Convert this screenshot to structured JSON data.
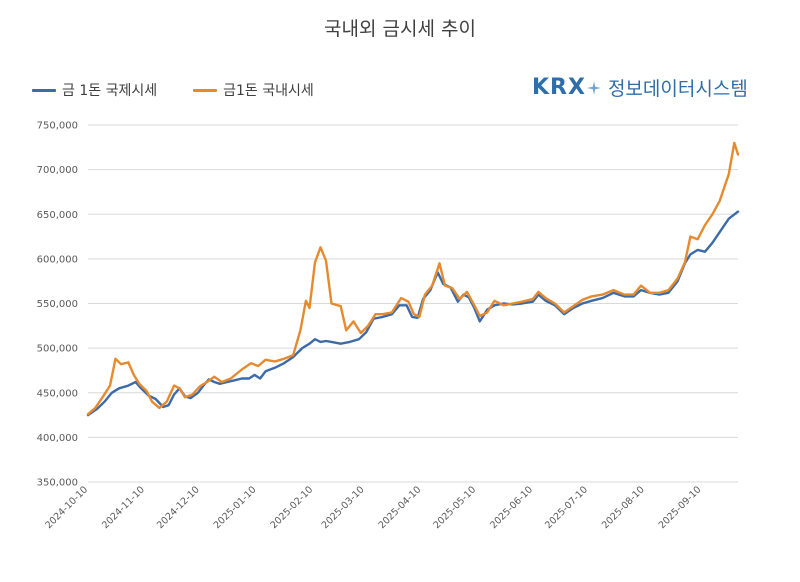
{
  "title": "국내외 금시세 추이",
  "logo": {
    "brand": "KRX",
    "text": "정보데이터시스템"
  },
  "chart_data": {
    "type": "line",
    "title": "국내외 금시세 추이",
    "ylim": [
      350000,
      750000
    ],
    "yticks": [
      "350,000",
      "400,000",
      "450,000",
      "500,000",
      "550,000",
      "600,000",
      "650,000",
      "700,000",
      "750,000"
    ],
    "xlim": [
      "2024-10-10",
      "2025-09-30"
    ],
    "xticks": [
      "2024-10-10",
      "2024-11-10",
      "2024-12-10",
      "2025-01-10",
      "2025-02-10",
      "2025-03-10",
      "2025-04-10",
      "2025-05-10",
      "2025-06-10",
      "2025-07-10",
      "2025-08-10",
      "2025-09-10"
    ],
    "grid": "horizontal",
    "legend": "top-left",
    "series": [
      {
        "name": "금 1돈 국제시세",
        "color": "#3d6ba8",
        "points": [
          [
            "2024-10-10",
            425000
          ],
          [
            "2024-10-15",
            432000
          ],
          [
            "2024-10-19",
            440000
          ],
          [
            "2024-10-23",
            450000
          ],
          [
            "2024-10-27",
            455000
          ],
          [
            "2024-11-01",
            458000
          ],
          [
            "2024-11-05",
            462000
          ],
          [
            "2024-11-08",
            455000
          ],
          [
            "2024-11-12",
            447000
          ],
          [
            "2024-11-16",
            443000
          ],
          [
            "2024-11-20",
            434000
          ],
          [
            "2024-11-23",
            436000
          ],
          [
            "2024-11-26",
            448000
          ],
          [
            "2024-11-29",
            455000
          ],
          [
            "2024-12-02",
            446000
          ],
          [
            "2024-12-05",
            444000
          ],
          [
            "2024-12-09",
            450000
          ],
          [
            "2024-12-12",
            458000
          ],
          [
            "2024-12-15",
            465000
          ],
          [
            "2024-12-18",
            462000
          ],
          [
            "2024-12-21",
            460000
          ],
          [
            "2024-12-25",
            462000
          ],
          [
            "2024-12-29",
            464000
          ],
          [
            "2025-01-02",
            466000
          ],
          [
            "2025-01-06",
            466000
          ],
          [
            "2025-01-09",
            470000
          ],
          [
            "2025-01-12",
            466000
          ],
          [
            "2025-01-15",
            474000
          ],
          [
            "2025-01-20",
            478000
          ],
          [
            "2025-01-25",
            483000
          ],
          [
            "2025-01-30",
            490000
          ],
          [
            "2025-02-04",
            500000
          ],
          [
            "2025-02-08",
            505000
          ],
          [
            "2025-02-11",
            510000
          ],
          [
            "2025-02-14",
            507000
          ],
          [
            "2025-02-17",
            508000
          ],
          [
            "2025-02-20",
            507000
          ],
          [
            "2025-02-25",
            505000
          ],
          [
            "2025-03-02",
            507000
          ],
          [
            "2025-03-07",
            510000
          ],
          [
            "2025-03-11",
            518000
          ],
          [
            "2025-03-15",
            533000
          ],
          [
            "2025-03-20",
            535000
          ],
          [
            "2025-03-25",
            538000
          ],
          [
            "2025-03-29",
            548000
          ],
          [
            "2025-04-02",
            548000
          ],
          [
            "2025-04-05",
            535000
          ],
          [
            "2025-04-08",
            534000
          ],
          [
            "2025-04-11",
            555000
          ],
          [
            "2025-04-15",
            565000
          ],
          [
            "2025-04-19",
            585000
          ],
          [
            "2025-04-22",
            572000
          ],
          [
            "2025-04-26",
            568000
          ],
          [
            "2025-04-30",
            552000
          ],
          [
            "2025-05-03",
            560000
          ],
          [
            "2025-05-06",
            557000
          ],
          [
            "2025-05-09",
            545000
          ],
          [
            "2025-05-12",
            530000
          ],
          [
            "2025-05-16",
            543000
          ],
          [
            "2025-05-20",
            548000
          ],
          [
            "2025-05-25",
            550000
          ],
          [
            "2025-05-30",
            549000
          ],
          [
            "2025-06-04",
            550000
          ],
          [
            "2025-06-10",
            552000
          ],
          [
            "2025-06-13",
            560000
          ],
          [
            "2025-06-17",
            553000
          ],
          [
            "2025-06-22",
            548000
          ],
          [
            "2025-06-27",
            538000
          ],
          [
            "2025-07-02",
            545000
          ],
          [
            "2025-07-07",
            550000
          ],
          [
            "2025-07-12",
            553000
          ],
          [
            "2025-07-18",
            556000
          ],
          [
            "2025-07-24",
            562000
          ],
          [
            "2025-07-30",
            558000
          ],
          [
            "2025-08-04",
            558000
          ],
          [
            "2025-08-08",
            565000
          ],
          [
            "2025-08-13",
            562000
          ],
          [
            "2025-08-18",
            560000
          ],
          [
            "2025-08-23",
            562000
          ],
          [
            "2025-08-28",
            575000
          ],
          [
            "2025-09-01",
            595000
          ],
          [
            "2025-09-04",
            605000
          ],
          [
            "2025-09-08",
            610000
          ],
          [
            "2025-09-12",
            608000
          ],
          [
            "2025-09-16",
            618000
          ],
          [
            "2025-09-20",
            630000
          ],
          [
            "2025-09-25",
            645000
          ],
          [
            "2025-09-30",
            653000
          ]
        ]
      },
      {
        "name": "금1돈 국내시세",
        "color": "#e58a2f",
        "points": [
          [
            "2024-10-10",
            426000
          ],
          [
            "2024-10-14",
            433000
          ],
          [
            "2024-10-18",
            445000
          ],
          [
            "2024-10-22",
            458000
          ],
          [
            "2024-10-25",
            488000
          ],
          [
            "2024-10-28",
            482000
          ],
          [
            "2024-11-01",
            484000
          ],
          [
            "2024-11-04",
            470000
          ],
          [
            "2024-11-07",
            460000
          ],
          [
            "2024-11-11",
            452000
          ],
          [
            "2024-11-14",
            440000
          ],
          [
            "2024-11-18",
            433000
          ],
          [
            "2024-11-22",
            440000
          ],
          [
            "2024-11-26",
            458000
          ],
          [
            "2024-11-29",
            455000
          ],
          [
            "2024-12-02",
            445000
          ],
          [
            "2024-12-06",
            448000
          ],
          [
            "2024-12-10",
            457000
          ],
          [
            "2024-12-14",
            462000
          ],
          [
            "2024-12-18",
            468000
          ],
          [
            "2024-12-22",
            462000
          ],
          [
            "2024-12-27",
            466000
          ],
          [
            "2025-01-02",
            476000
          ],
          [
            "2025-01-07",
            483000
          ],
          [
            "2025-01-11",
            480000
          ],
          [
            "2025-01-15",
            487000
          ],
          [
            "2025-01-20",
            485000
          ],
          [
            "2025-01-25",
            488000
          ],
          [
            "2025-01-30",
            492000
          ],
          [
            "2025-02-03",
            520000
          ],
          [
            "2025-02-06",
            553000
          ],
          [
            "2025-02-08",
            545000
          ],
          [
            "2025-02-11",
            596000
          ],
          [
            "2025-02-14",
            613000
          ],
          [
            "2025-02-17",
            598000
          ],
          [
            "2025-02-20",
            550000
          ],
          [
            "2025-02-25",
            547000
          ],
          [
            "2025-02-28",
            520000
          ],
          [
            "2025-03-04",
            530000
          ],
          [
            "2025-03-08",
            517000
          ],
          [
            "2025-03-12",
            525000
          ],
          [
            "2025-03-16",
            538000
          ],
          [
            "2025-03-20",
            538000
          ],
          [
            "2025-03-25",
            540000
          ],
          [
            "2025-03-30",
            556000
          ],
          [
            "2025-04-03",
            552000
          ],
          [
            "2025-04-06",
            538000
          ],
          [
            "2025-04-09",
            535000
          ],
          [
            "2025-04-12",
            560000
          ],
          [
            "2025-04-16",
            570000
          ],
          [
            "2025-04-20",
            595000
          ],
          [
            "2025-04-23",
            570000
          ],
          [
            "2025-04-27",
            567000
          ],
          [
            "2025-05-01",
            555000
          ],
          [
            "2025-05-05",
            563000
          ],
          [
            "2025-05-09",
            548000
          ],
          [
            "2025-05-12",
            536000
          ],
          [
            "2025-05-16",
            540000
          ],
          [
            "2025-05-20",
            553000
          ],
          [
            "2025-05-25",
            548000
          ],
          [
            "2025-05-30",
            550000
          ],
          [
            "2025-06-04",
            552000
          ],
          [
            "2025-06-10",
            555000
          ],
          [
            "2025-06-13",
            563000
          ],
          [
            "2025-06-17",
            556000
          ],
          [
            "2025-06-22",
            550000
          ],
          [
            "2025-06-27",
            540000
          ],
          [
            "2025-07-02",
            547000
          ],
          [
            "2025-07-07",
            554000
          ],
          [
            "2025-07-12",
            558000
          ],
          [
            "2025-07-18",
            560000
          ],
          [
            "2025-07-24",
            565000
          ],
          [
            "2025-07-30",
            560000
          ],
          [
            "2025-08-04",
            560000
          ],
          [
            "2025-08-08",
            570000
          ],
          [
            "2025-08-13",
            562000
          ],
          [
            "2025-08-18",
            562000
          ],
          [
            "2025-08-23",
            565000
          ],
          [
            "2025-08-28",
            578000
          ],
          [
            "2025-09-01",
            596000
          ],
          [
            "2025-09-04",
            625000
          ],
          [
            "2025-09-08",
            622000
          ],
          [
            "2025-09-12",
            638000
          ],
          [
            "2025-09-16",
            650000
          ],
          [
            "2025-09-20",
            665000
          ],
          [
            "2025-09-25",
            695000
          ],
          [
            "2025-09-28",
            730000
          ],
          [
            "2025-09-30",
            717000
          ]
        ]
      }
    ]
  }
}
